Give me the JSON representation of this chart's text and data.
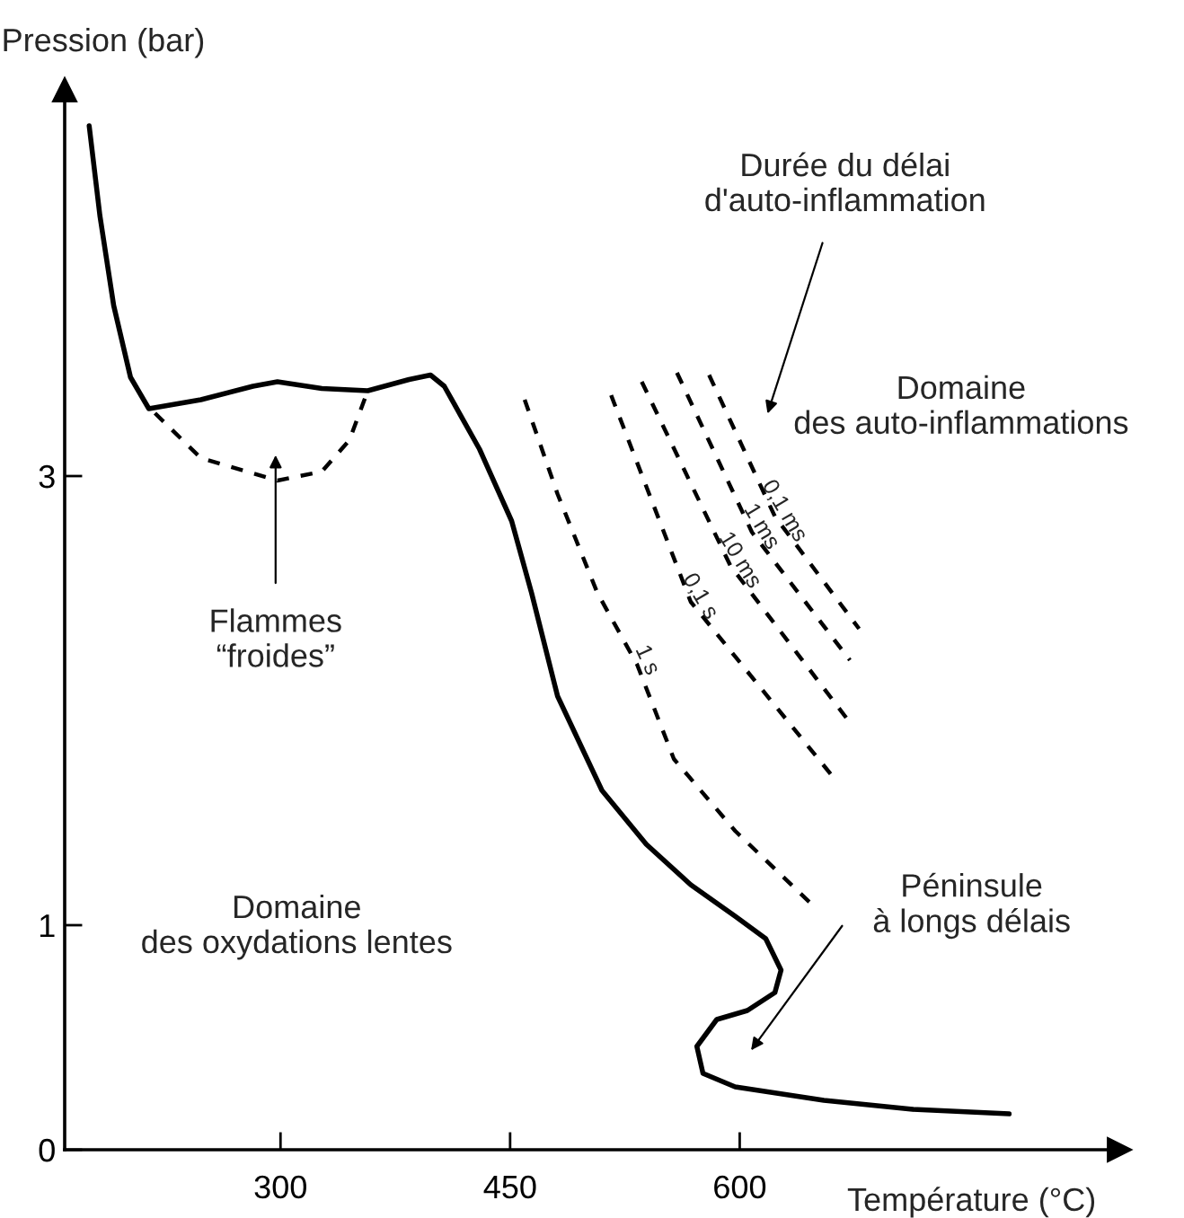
{
  "chart_data": {
    "type": "line",
    "xlabel": "Température (°C)",
    "ylabel": "Pression (bar)",
    "xlim": [
      159,
      848
    ],
    "ylim": [
      0,
      4.72
    ],
    "xticks": [
      300,
      450,
      600
    ],
    "yticks": [
      0,
      1,
      3
    ],
    "grid": false,
    "legend": false,
    "marker": "none",
    "series": [
      {
        "color": "#000000",
        "line_style": "solid",
        "x": [
          175,
          182,
          191,
          202,
          214,
          248,
          282,
          298,
          327,
          357,
          384,
          398,
          407,
          430,
          451,
          464,
          481,
          510,
          539,
          568,
          597,
          617,
          627,
          623,
          605,
          585,
          572,
          576,
          597,
          655,
          713,
          776
        ],
        "values": [
          4.56,
          4.16,
          3.76,
          3.44,
          3.3,
          3.34,
          3.4,
          3.42,
          3.39,
          3.38,
          3.43,
          3.45,
          3.4,
          3.12,
          2.8,
          2.48,
          2.02,
          1.6,
          1.36,
          1.18,
          1.04,
          0.94,
          0.8,
          0.7,
          0.62,
          0.58,
          0.46,
          0.34,
          0.28,
          0.22,
          0.18,
          0.16
        ]
      },
      {
        "color": "#000000",
        "line_style": "dashed",
        "x": [
          218,
          248,
          298,
          327,
          345,
          357
        ],
        "values": [
          3.28,
          3.08,
          2.98,
          3.02,
          3.16,
          3.38
        ]
      },
      {
        "color": "#000000",
        "line_style": "dashed",
        "x": [
          459.5,
          481,
          507,
          533,
          557,
          597,
          646
        ],
        "values": [
          3.34,
          2.92,
          2.48,
          2.16,
          1.74,
          1.42,
          1.1
        ]
      },
      {
        "color": "#000000",
        "line_style": "dashed",
        "x": [
          516,
          568,
          661
        ],
        "values": [
          3.36,
          2.44,
          1.66
        ]
      },
      {
        "color": "#000000",
        "line_style": "dashed",
        "x": [
          536,
          594,
          670
        ],
        "values": [
          3.42,
          2.6,
          1.92
        ]
      },
      {
        "color": "#000000",
        "line_style": "dashed",
        "x": [
          559,
          608,
          672
        ],
        "values": [
          3.46,
          2.75,
          2.18
        ]
      },
      {
        "color": "#000000",
        "line_style": "dashed",
        "x": [
          580,
          623,
          678
        ],
        "values": [
          3.45,
          2.82,
          2.32
        ]
      }
    ],
    "annotations": [
      "Durée du délai\nd'auto-inflammation",
      "Domaine\ndes auto-inflammations",
      "Flammes\n“froides”",
      "Domaine\ndes oxydations lentes",
      "Péninsule\nà longs délais",
      "1 s",
      "0,1 s",
      "10 ms",
      "1 ms",
      "0,1 ms"
    ]
  }
}
